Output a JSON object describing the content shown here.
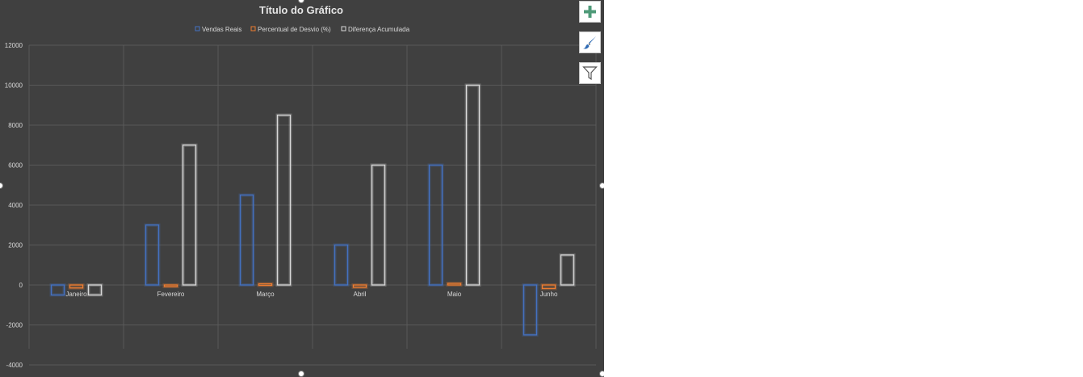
{
  "chart_data": {
    "type": "bar",
    "title": "Título do Gráfico",
    "categories": [
      "Janeiro",
      "Fevereiro",
      "Março",
      "Abril",
      "Maio",
      "Junho"
    ],
    "series": [
      {
        "name": "Vendas Reais",
        "color": "#4472c4",
        "values": [
          -500,
          3000,
          4500,
          2000,
          6000,
          -2500
        ]
      },
      {
        "name": "Percentual de Desvio (%)",
        "color": "#ed7d31",
        "values": [
          -150,
          -80,
          60,
          -120,
          80,
          -180
        ]
      },
      {
        "name": "Diferença Acumulada",
        "color": "#d9d9d9",
        "values": [
          -500,
          7000,
          8500,
          6000,
          10000,
          1500
        ]
      }
    ],
    "ylim": [
      -4000,
      12000
    ],
    "yticks": [
      12000,
      10000,
      8000,
      6000,
      4000,
      2000,
      0,
      -2000,
      -4000
    ],
    "grid": true,
    "legend": "top"
  },
  "toolbar": {
    "buttons": [
      {
        "name": "chart-elements-button",
        "icon": "plus-icon"
      },
      {
        "name": "chart-styles-button",
        "icon": "paintbrush-icon"
      },
      {
        "name": "chart-filters-button",
        "icon": "funnel-icon"
      }
    ]
  },
  "colors": {
    "background": "#404040",
    "grid": "#595959",
    "text": "#d9d9d9"
  }
}
